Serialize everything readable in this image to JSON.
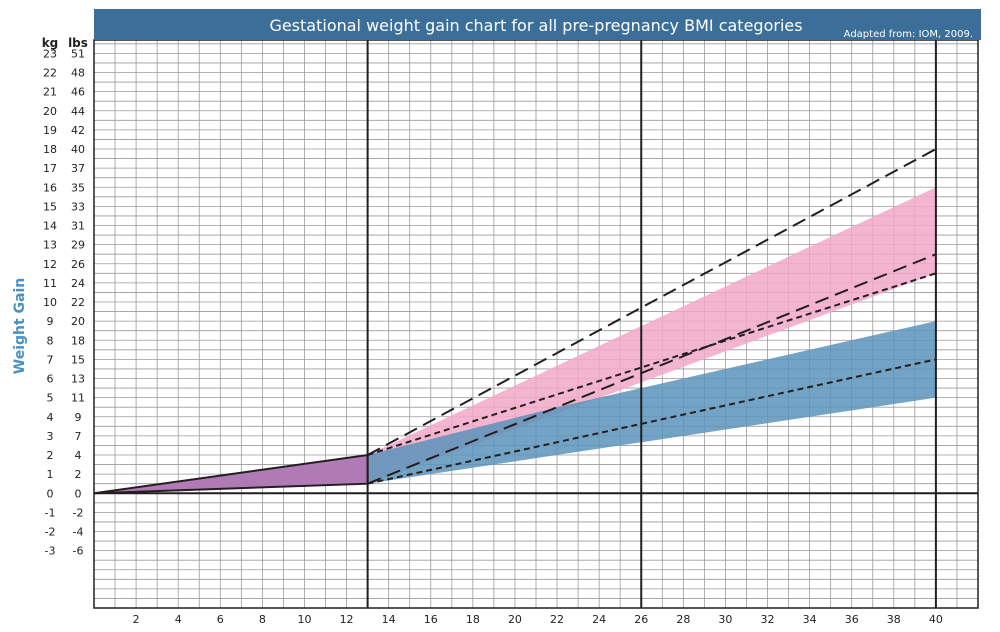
{
  "chart_data": {
    "type": "area",
    "title": "Gestational weight gain chart for all pre-pregnancy BMI categories",
    "source": "Adapted from: IOM, 2009.",
    "ylabel": "Weight Gain",
    "y_units": {
      "kg": "kg",
      "lbs": "lbs"
    },
    "xlim": [
      0,
      42
    ],
    "ylim": [
      -6,
      23
    ],
    "y_ticks_lbs_labels": [
      "-6",
      "-4",
      "-2",
      "0",
      "2",
      "4",
      "7",
      "9",
      "11",
      "13",
      "15",
      "18",
      "20",
      "22",
      "24",
      "26",
      "29",
      "31",
      "33",
      "35",
      "37",
      "40",
      "42",
      "44",
      "46",
      "48",
      "51"
    ],
    "y_ticks_kg_labels": [
      "-3",
      "-2",
      "-1",
      "0",
      "1",
      "2",
      "3",
      "4",
      "5",
      "6",
      "7",
      "8",
      "9",
      "10",
      "11",
      "12",
      "13",
      "14",
      "15",
      "16",
      "17",
      "18",
      "19",
      "20",
      "21",
      "22",
      "23"
    ],
    "x_tick_labels": [
      "2",
      "4",
      "6",
      "8",
      "10",
      "12",
      "14",
      "16",
      "18",
      "20",
      "22",
      "24",
      "26",
      "28",
      "30",
      "32",
      "34",
      "36",
      "38",
      "40"
    ],
    "grid": true,
    "colors": {
      "header": "#3b6e98",
      "axis_label": "#4a90c4",
      "pink_band": "#f2a8c9",
      "blue_band": "#5b93bb",
      "purple_area": "#b07ab5",
      "gridline": "#9a9a9a",
      "dark_line": "#231f20"
    },
    "vertical_lines_x": [
      13,
      26,
      40
    ],
    "first_trimester_area": {
      "upper": [
        [
          0,
          0
        ],
        [
          13,
          2
        ]
      ],
      "lower": [
        [
          0,
          0
        ],
        [
          13,
          0.5
        ]
      ]
    },
    "series": [
      {
        "kind": "band",
        "color": "#f2a8c9",
        "upper": [
          [
            13,
            2
          ],
          [
            40,
            16
          ]
        ],
        "lower": [
          [
            13,
            0.5
          ],
          [
            40,
            11.5
          ]
        ]
      },
      {
        "kind": "band",
        "color": "#5b93bb",
        "upper": [
          [
            13,
            2
          ],
          [
            22,
            4.5
          ],
          [
            26,
            5.5
          ],
          [
            40,
            9
          ]
        ],
        "lower": [
          [
            13,
            0.5
          ],
          [
            40,
            5
          ]
        ]
      },
      {
        "kind": "line",
        "dash": "long",
        "points": [
          [
            13,
            2
          ],
          [
            40,
            18
          ]
        ]
      },
      {
        "kind": "line",
        "dash": "short",
        "points": [
          [
            13,
            2
          ],
          [
            40,
            11.5
          ]
        ]
      },
      {
        "kind": "line",
        "dash": "long",
        "points": [
          [
            13,
            0.5
          ],
          [
            40,
            12.5
          ]
        ]
      },
      {
        "kind": "line",
        "dash": "short",
        "points": [
          [
            13,
            0.5
          ],
          [
            40,
            7
          ]
        ]
      }
    ]
  }
}
